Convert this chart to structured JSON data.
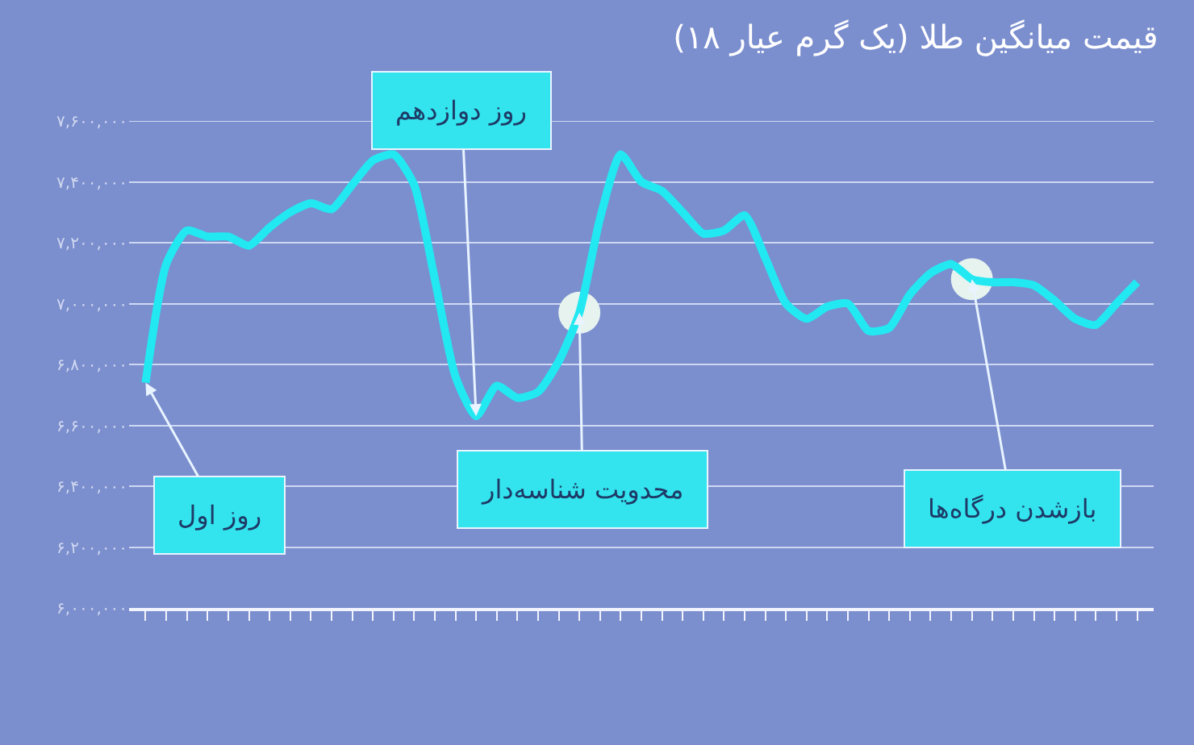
{
  "chart_data": {
    "type": "line",
    "title": "قیمت میانگین طلا (یک گرم عیار ۱۸)",
    "categories": [
      null,
      null,
      null,
      null,
      null,
      null,
      null,
      null,
      null,
      null,
      null,
      null,
      null,
      null,
      null,
      null,
      null,
      null,
      null,
      null,
      null,
      null,
      null,
      null,
      null,
      null,
      null,
      null,
      null,
      null,
      null,
      null,
      null,
      null,
      null,
      null,
      null,
      null,
      null,
      null,
      null,
      null,
      null,
      null,
      null,
      null,
      null,
      null,
      null
    ],
    "series": [
      {
        "color": "#22e8f2",
        "values": [
          6740000,
          7130000,
          7240000,
          7220000,
          7220000,
          7190000,
          7250000,
          7300000,
          7330000,
          7310000,
          7390000,
          7470000,
          7490000,
          7390000,
          7080000,
          6760000,
          6630000,
          6730000,
          6690000,
          6710000,
          6810000,
          6970000,
          7280000,
          7490000,
          7400000,
          7370000,
          7300000,
          7230000,
          7240000,
          7290000,
          7150000,
          7000000,
          6950000,
          6990000,
          7000000,
          6910000,
          6920000,
          7030000,
          7100000,
          7130000,
          7080000,
          7070000,
          7070000,
          7060000,
          7010000,
          6950000,
          6930000,
          7000000,
          7070000
        ]
      },
      {
        "type": "scatter",
        "color": "#e6f3ee",
        "values": [
          null,
          null,
          null,
          null,
          null,
          null,
          null,
          null,
          null,
          null,
          null,
          null,
          null,
          null,
          null,
          null,
          null,
          null,
          null,
          null,
          null,
          6970000,
          null,
          null,
          null,
          null,
          null,
          null,
          null,
          null,
          null,
          null,
          null,
          null,
          null,
          null,
          null,
          null,
          null,
          null,
          7080000,
          null,
          null,
          null,
          null,
          null,
          null,
          null,
          null
        ]
      }
    ],
    "ylim": [
      6000000,
      7600000
    ],
    "yticks": [
      {
        "value": 6000000,
        "label": "۶,۰۰۰,۰۰۰"
      },
      {
        "value": 6200000,
        "label": "۶,۲۰۰,۰۰۰"
      },
      {
        "value": 6400000,
        "label": "۶,۴۰۰,۰۰۰"
      },
      {
        "value": 6600000,
        "label": "۶,۶۰۰,۰۰۰"
      },
      {
        "value": 6800000,
        "label": "۶,۸۰۰,۰۰۰"
      },
      {
        "value": 7000000,
        "label": "۷,۰۰۰,۰۰۰"
      },
      {
        "value": 7200000,
        "label": "۷,۲۰۰,۰۰۰"
      },
      {
        "value": 7400000,
        "label": "۷,۴۰۰,۰۰۰"
      },
      {
        "value": 7600000,
        "label": "۷,۶۰۰,۰۰۰"
      }
    ],
    "grid": "y",
    "tick_labels": "y",
    "annotations": [
      "روز اول",
      "روز دوازدهم",
      "محدویت شناسه‌دار",
      "بازشدن درگاه‌ها"
    ]
  }
}
